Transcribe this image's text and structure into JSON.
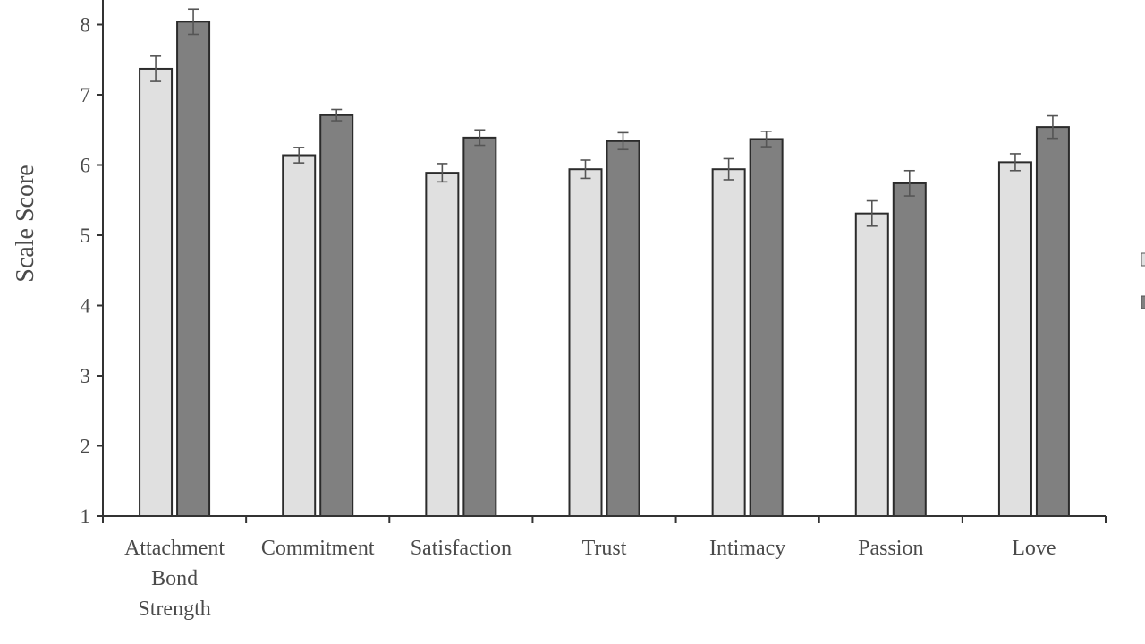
{
  "chart_data": {
    "type": "bar",
    "ylabel": "Scale Score",
    "xlabel": "",
    "ylim": [
      1,
      8
    ],
    "yticks": [
      1,
      2,
      3,
      4,
      5,
      6,
      7,
      8
    ],
    "categories": [
      [
        "Attachment",
        "Bond",
        "Strength"
      ],
      [
        "Commitment"
      ],
      [
        "Satisfaction"
      ],
      [
        "Trust"
      ],
      [
        "Intimacy"
      ],
      [
        "Passion"
      ],
      [
        "Love"
      ]
    ],
    "series": [
      {
        "color": "#e0e0e0",
        "values": [
          7.37,
          6.14,
          5.89,
          5.94,
          5.94,
          5.31,
          6.04
        ],
        "errors": [
          0.18,
          0.11,
          0.13,
          0.13,
          0.15,
          0.18,
          0.12
        ]
      },
      {
        "color": "#808080",
        "values": [
          8.04,
          6.71,
          6.39,
          6.34,
          6.37,
          5.74,
          6.54
        ],
        "errors": [
          0.18,
          0.08,
          0.11,
          0.12,
          0.11,
          0.18,
          0.16
        ]
      }
    ],
    "grid": false,
    "legend": "right (cut off)"
  }
}
